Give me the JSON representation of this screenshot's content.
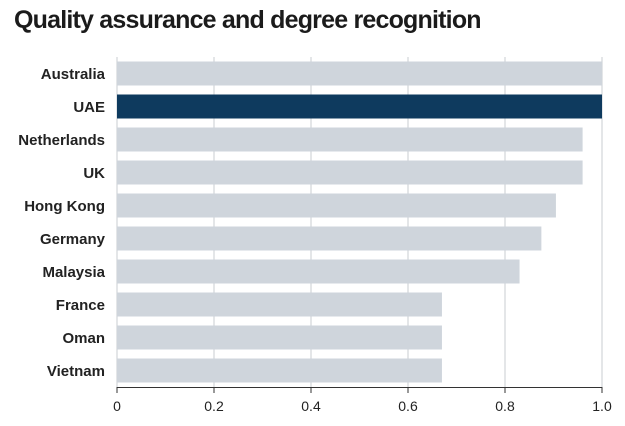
{
  "chart_data": {
    "type": "bar",
    "orientation": "horizontal",
    "title": "Quality assurance and degree recognition",
    "categories": [
      "Australia",
      "UAE",
      "Netherlands",
      "UK",
      "Hong Kong",
      "Germany",
      "Malaysia",
      "France",
      "Oman",
      "Vietnam"
    ],
    "values": [
      1.0,
      1.0,
      0.96,
      0.96,
      0.905,
      0.875,
      0.83,
      0.67,
      0.67,
      0.67
    ],
    "highlight": "UAE",
    "xlabel": "",
    "ylabel": "",
    "xlim": [
      0,
      1.0
    ],
    "x_ticks": [
      "0",
      "0.2",
      "0.4",
      "0.6",
      "0.8",
      "1.0"
    ],
    "grid": "vertical",
    "colors": {
      "bar": "#cfd5dc",
      "highlight": "#0e3a5e",
      "grid": "#c8ccd1",
      "axis": "#333333"
    }
  }
}
